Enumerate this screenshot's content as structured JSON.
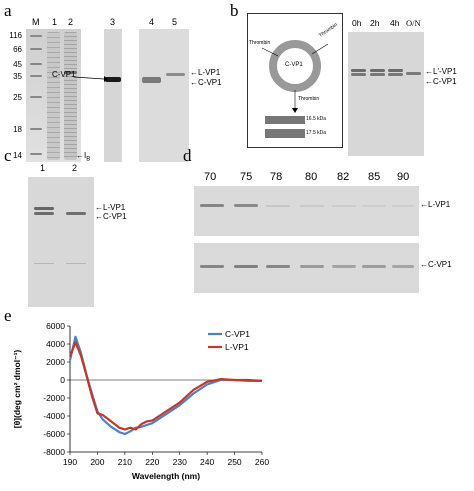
{
  "panels": {
    "a": {
      "letter": "a",
      "lanes": [
        "M",
        "1",
        "2",
        "3",
        "4",
        "5"
      ],
      "mw_markers": [
        "116",
        "66",
        "45",
        "35",
        "25",
        "18",
        "14"
      ],
      "labels": {
        "cvp1_left": "C-VP1",
        "ib": "I",
        "ib_sub": "B",
        "lvp1": "L-VP1",
        "cvp1_right": "C-VP1"
      }
    },
    "b": {
      "letter": "b",
      "diagram": {
        "ring_label": "C-VP1",
        "thrombin_left": "Thrombin",
        "thrombin_right": "Thrombin",
        "thrombin_bottom": "Thrombin",
        "fragment1": "16.5 kDa",
        "fragment2": "17.5 kDa"
      },
      "timepoints": [
        "0h",
        "2h",
        "4h",
        "O/N"
      ],
      "labels": {
        "lvp1_prime": "L'-VP1",
        "cvp1": "C-VP1"
      }
    },
    "c": {
      "letter": "c",
      "lanes": [
        "1",
        "2"
      ],
      "labels": {
        "lvp1": "L-VP1",
        "cvp1": "C-VP1"
      }
    },
    "d": {
      "letter": "d",
      "temperatures": [
        "70",
        "75",
        "78",
        "80",
        "82",
        "85",
        "90"
      ],
      "labels": {
        "lvp1": "L-VP1",
        "cvp1": "C-VP1"
      }
    },
    "e": {
      "letter": "e"
    }
  },
  "chart_data": {
    "type": "line",
    "xlabel": "Wavelength (nm)",
    "ylabel": "[θ](deg cm² dmol⁻¹)",
    "xlim": [
      190,
      260
    ],
    "ylim": [
      -8000,
      6000
    ],
    "xticks": [
      190,
      200,
      210,
      220,
      230,
      240,
      250,
      260
    ],
    "yticks": [
      6000,
      4000,
      2000,
      0,
      -2000,
      -4000,
      -6000,
      -8000
    ],
    "legend_position": "upper-right",
    "series": [
      {
        "name": "C-VP1",
        "color": "#4f7fc8",
        "x": [
          190,
          192,
          194,
          196,
          198,
          200,
          202,
          205,
          208,
          210,
          212,
          214,
          216,
          218,
          220,
          225,
          230,
          235,
          240,
          245,
          250,
          255,
          260
        ],
        "y": [
          2200,
          4800,
          3000,
          600,
          -1500,
          -3500,
          -4400,
          -5200,
          -5800,
          -6000,
          -5700,
          -5300,
          -5200,
          -5000,
          -4800,
          -3800,
          -2800,
          -1500,
          -500,
          0,
          0,
          -100,
          -100
        ]
      },
      {
        "name": "L-VP1",
        "color": "#c0392b",
        "x": [
          190,
          192,
          194,
          196,
          198,
          200,
          202,
          205,
          208,
          210,
          212,
          214,
          216,
          218,
          220,
          225,
          230,
          235,
          240,
          245,
          250,
          255,
          260
        ],
        "y": [
          2600,
          4200,
          2700,
          500,
          -1800,
          -3700,
          -3900,
          -4600,
          -5300,
          -5500,
          -5300,
          -5500,
          -4900,
          -4600,
          -4500,
          -3500,
          -2500,
          -1100,
          -200,
          100,
          0,
          0,
          -100
        ]
      }
    ]
  }
}
